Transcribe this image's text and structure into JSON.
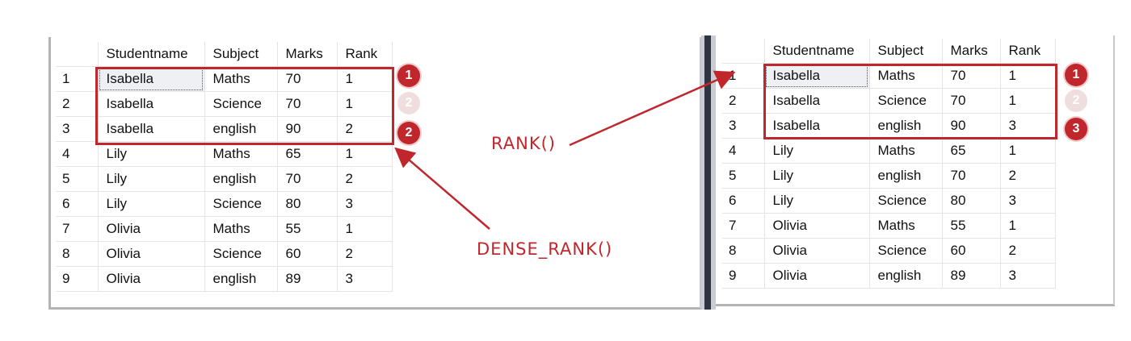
{
  "left_table": {
    "headers": [
      "",
      "Studentname",
      "Subject",
      "Marks",
      "Rank"
    ],
    "rows": [
      [
        "1",
        "Isabella",
        "Maths",
        "70",
        "1"
      ],
      [
        "2",
        "Isabella",
        "Science",
        "70",
        "1"
      ],
      [
        "3",
        "Isabella",
        "english",
        "90",
        "2"
      ],
      [
        "4",
        "Lily",
        "Maths",
        "65",
        "1"
      ],
      [
        "5",
        "Lily",
        "english",
        "70",
        "2"
      ],
      [
        "6",
        "Lily",
        "Science",
        "80",
        "3"
      ],
      [
        "7",
        "Olivia",
        "Maths",
        "55",
        "1"
      ],
      [
        "8",
        "Olivia",
        "Science",
        "60",
        "2"
      ],
      [
        "9",
        "Olivia",
        "english",
        "89",
        "3"
      ]
    ]
  },
  "right_table": {
    "headers": [
      "",
      "Studentname",
      "Subject",
      "Marks",
      "Rank"
    ],
    "rows": [
      [
        "1",
        "Isabella",
        "Maths",
        "70",
        "1"
      ],
      [
        "2",
        "Isabella",
        "Science",
        "70",
        "1"
      ],
      [
        "3",
        "Isabella",
        "english",
        "90",
        "3"
      ],
      [
        "4",
        "Lily",
        "Maths",
        "65",
        "1"
      ],
      [
        "5",
        "Lily",
        "english",
        "70",
        "2"
      ],
      [
        "6",
        "Lily",
        "Science",
        "80",
        "3"
      ],
      [
        "7",
        "Olivia",
        "Maths",
        "55",
        "1"
      ],
      [
        "8",
        "Olivia",
        "Science",
        "60",
        "2"
      ],
      [
        "9",
        "Olivia",
        "english",
        "89",
        "3"
      ]
    ]
  },
  "annotations": {
    "rank_label": "RANK()",
    "dense_rank_label": "DENSE_RANK()",
    "left_badges": [
      "1",
      "2",
      "2"
    ],
    "right_badges": [
      "1",
      "2",
      "3"
    ]
  },
  "colors": {
    "annotation_red": "#c0272d"
  }
}
